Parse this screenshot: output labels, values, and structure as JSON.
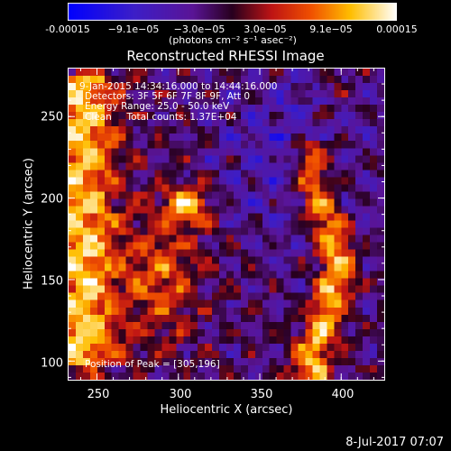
{
  "colorbar": {
    "ticks": [
      "-0.00015",
      "−9.1e−05",
      "−3.0e−05",
      "3.0e−05",
      "9.1e−05",
      "0.00015"
    ],
    "tick_values": [
      -0.00015,
      -9.1e-05,
      -3e-05,
      3e-05,
      9.1e-05,
      0.00015
    ],
    "units_label": "(photons cm⁻² s⁻¹ asec⁻²)",
    "colormap": "rhessi-3: blue-purple-red-yellow-white"
  },
  "chart_data": {
    "type": "heatmap",
    "title": "Reconstructed RHESSI Image",
    "xlabel": "Heliocentric X (arcsec)",
    "ylabel": "Heliocentric Y (arcsec)",
    "xlim": [
      232,
      427
    ],
    "ylim": [
      88,
      280
    ],
    "x_ticks": [
      250,
      300,
      350,
      400
    ],
    "y_ticks": [
      100,
      150,
      200,
      250
    ],
    "annotations": [
      "9-Jan-2015 14:34:16.000 to 14:44:16.000",
      "Detectors: 3F 5F 6F 7F 8F 9F, Att 0",
      "Energy Range: 25.0 - 50.0 keV",
      "Clean     Total counts: 1.37E+04"
    ],
    "peak_label": "Position of Peak = [305,196]",
    "peak_position": [
      305,
      196
    ],
    "value_range": [
      -0.00015,
      0.00015
    ],
    "bright_regions": [
      {
        "x": 245,
        "y": 190,
        "extent": "left edge, 100-270"
      },
      {
        "x": 305,
        "y": 196,
        "extent": "central blob"
      },
      {
        "x": 390,
        "y": 180,
        "extent": "right arc, 100-230"
      }
    ]
  },
  "footer": {
    "timestamp": "8-Jul-2017 07:07"
  }
}
